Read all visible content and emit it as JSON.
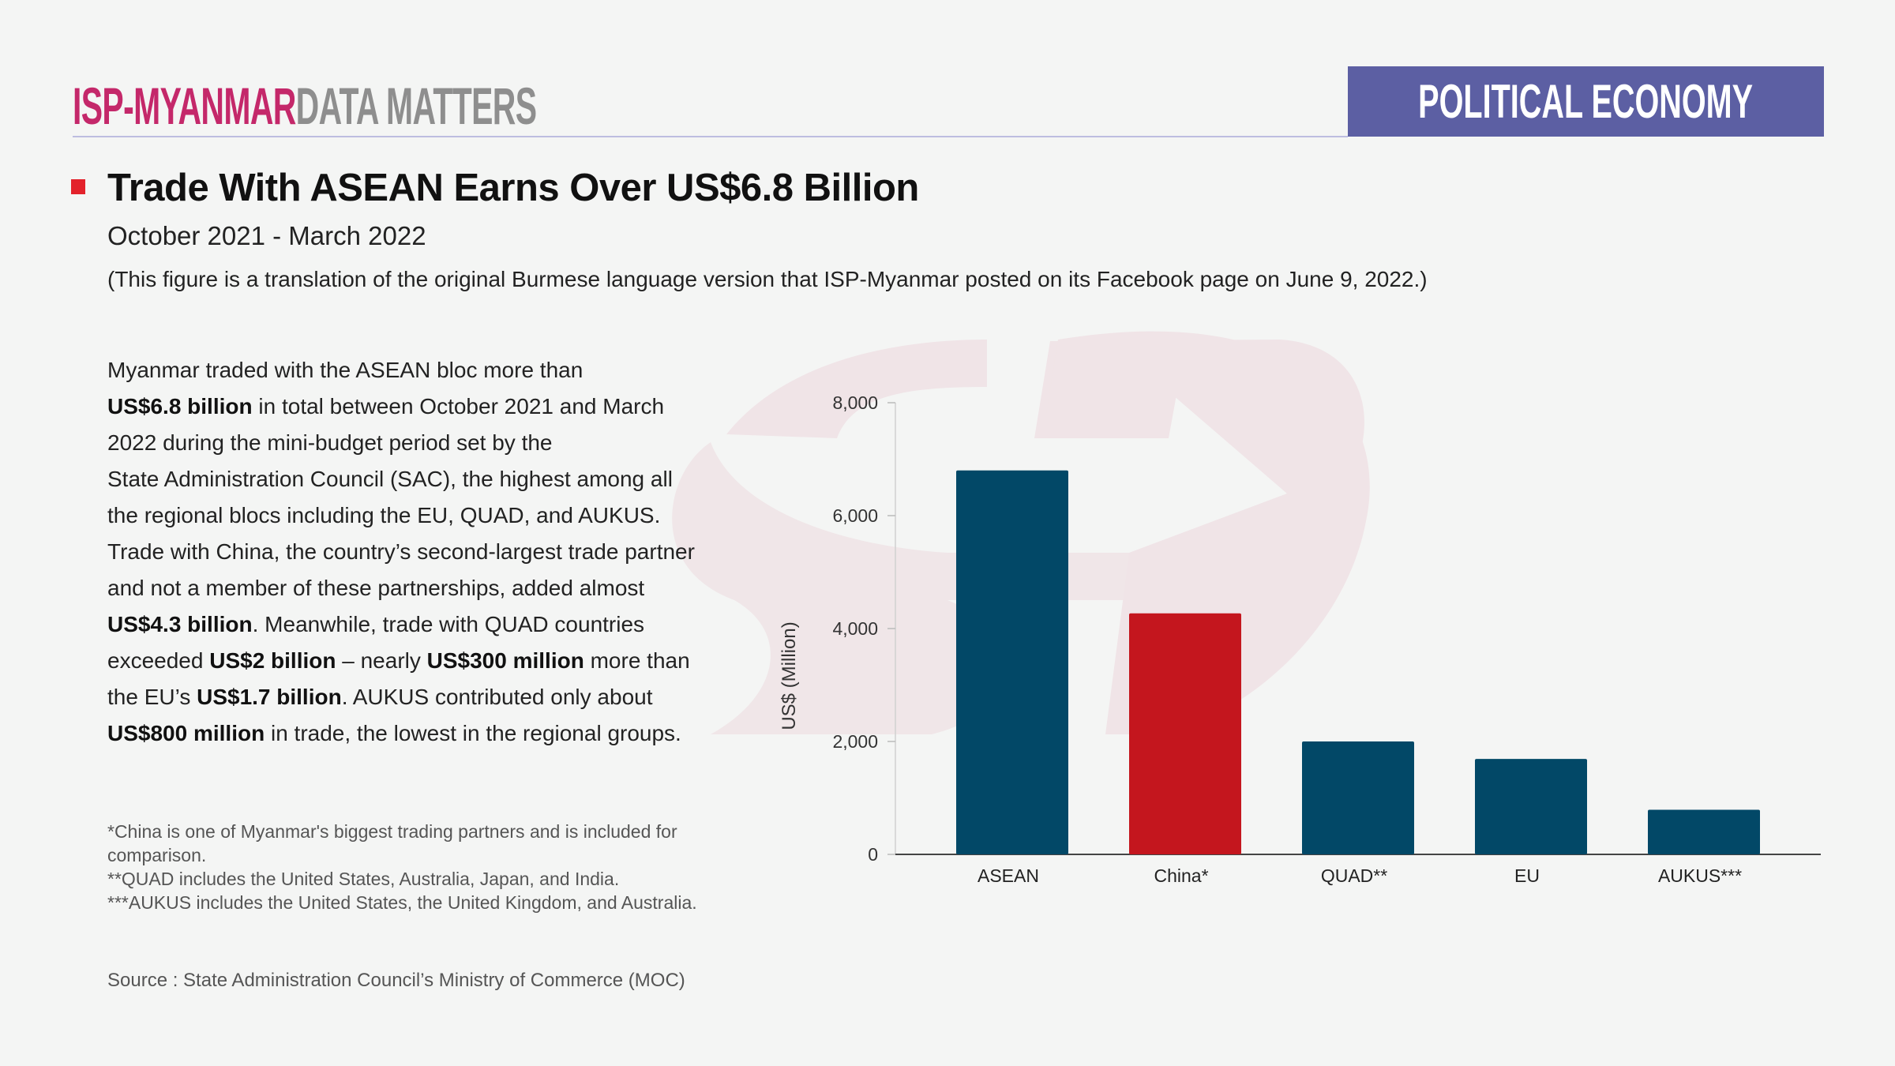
{
  "header": {
    "brand": "ISP-MYANMAR",
    "series": "DATA MATTERS",
    "category": "POLITICAL ECONOMY"
  },
  "title": "Trade With ASEAN Earns Over US$6.8 Billion",
  "subtitle": "October 2021 - March 2022",
  "note": "(This figure is a translation of the original Burmese language version that ISP-Myanmar posted on its Facebook page on June 9, 2022.)",
  "paragraph_lines": [
    [
      {
        "t": "Myanmar traded with the ASEAN bloc more than"
      }
    ],
    [
      {
        "t": "US$6.8 billion",
        "b": true
      },
      {
        "t": " in total between October 2021 and March"
      }
    ],
    [
      {
        "t": "2022 during the mini-budget period set by the"
      }
    ],
    [
      {
        "t": "State Administration Council (SAC), the highest among all"
      }
    ],
    [
      {
        "t": "the regional blocs including the EU, QUAD, and AUKUS."
      }
    ],
    [
      {
        "t": "Trade with China, the country’s second-largest trade partner"
      }
    ],
    [
      {
        "t": "and not a member of these partnerships, added almost"
      }
    ],
    [
      {
        "t": "US$4.3 billion",
        "b": true
      },
      {
        "t": ". Meanwhile, trade with QUAD countries"
      }
    ],
    [
      {
        "t": "exceeded "
      },
      {
        "t": "US$2 billion",
        "b": true
      },
      {
        "t": " – nearly "
      },
      {
        "t": "US$300 million",
        "b": true
      },
      {
        "t": " more than"
      }
    ],
    [
      {
        "t": "the EU’s "
      },
      {
        "t": "US$1.7 billion",
        "b": true
      },
      {
        "t": ". AUKUS contributed only about"
      }
    ],
    [
      {
        "t": "US$800 million",
        "b": true
      },
      {
        "t": " in trade, the lowest in the regional groups."
      }
    ]
  ],
  "footnotes": [
    "*China is one of Myanmar's biggest trading partners and is included for comparison.",
    "**QUAD includes the United States, Australia, Japan, and India.",
    "***AUKUS includes the United States, the United Kingdom, and Australia."
  ],
  "source": "Source :   State Administration Council’s Ministry of Commerce (MOC)",
  "colors": {
    "bar": "#024867",
    "highlight": "#c4161e",
    "banner": "#5c5fa3",
    "brand": "#c4286a"
  },
  "chart_data": {
    "type": "bar",
    "categories": [
      "ASEAN",
      "China*",
      "QUAD**",
      "EU",
      "AUKUS***"
    ],
    "values": [
      6800,
      4270,
      2000,
      1690,
      790
    ],
    "highlight": "China*",
    "ylabel": "US$ (Million)",
    "xlabel": "",
    "ylim": [
      0,
      8000
    ],
    "yticks": [
      0,
      2000,
      4000,
      6000,
      8000
    ],
    "ytick_labels": [
      "0",
      "2,000",
      "4,000",
      "6,000",
      "8,000"
    ],
    "grid": false
  }
}
